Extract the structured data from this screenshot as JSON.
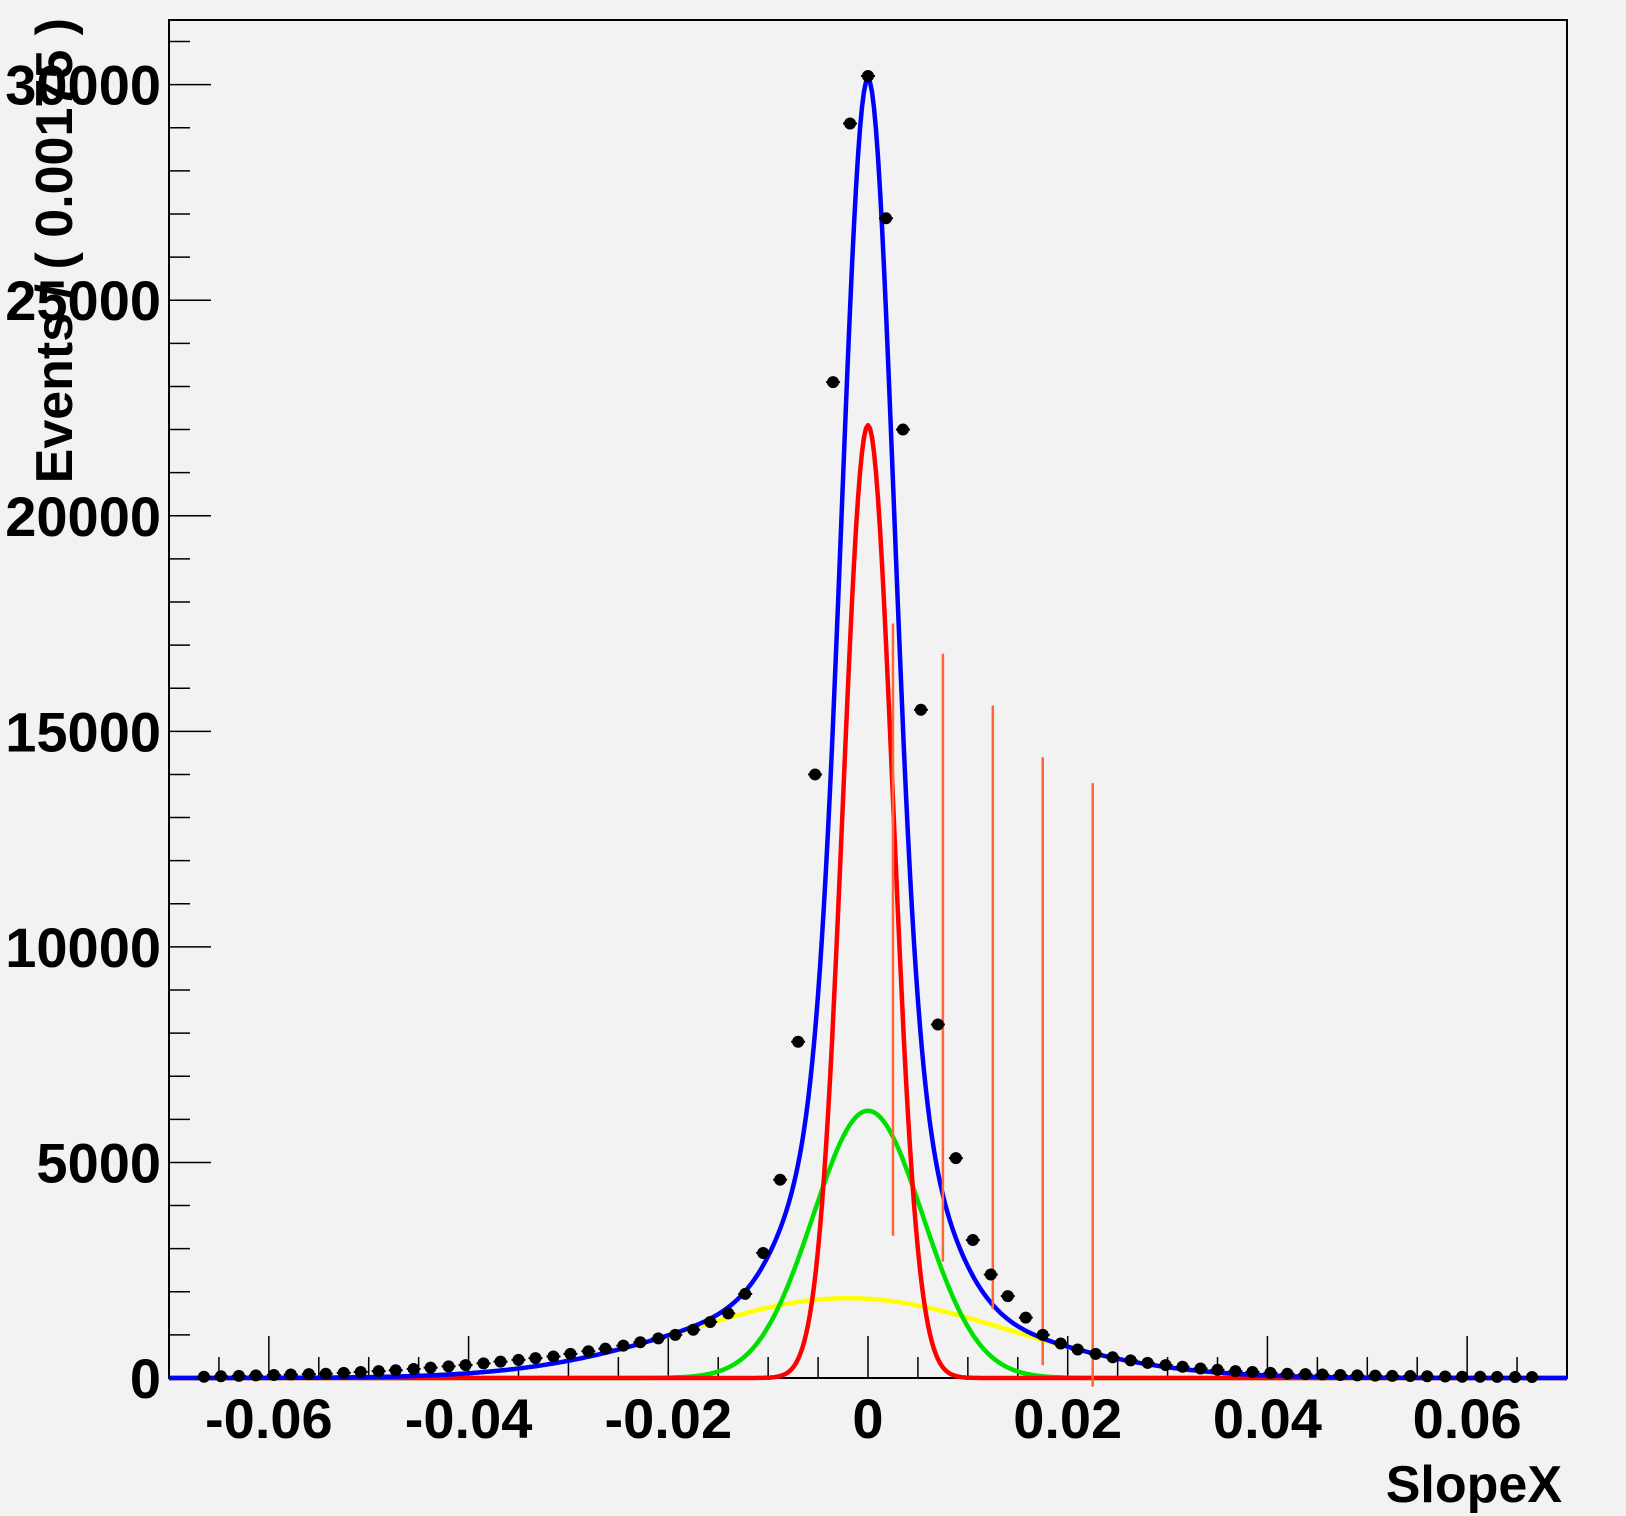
{
  "chart_data": {
    "type": "line",
    "title": "",
    "xlabel": "SlopeX",
    "ylabel": "Events / ( 0.00175 )",
    "xlim": [
      -0.07,
      0.07
    ],
    "ylim": [
      0,
      31500
    ],
    "x_ticks": [
      -0.06,
      -0.04,
      -0.02,
      0,
      0.02,
      0.04,
      0.06
    ],
    "x_tick_labels": [
      "-0.06",
      "-0.04",
      "-0.02",
      "0",
      "0.02",
      "0.04",
      "0.06"
    ],
    "y_ticks": [
      0,
      5000,
      10000,
      15000,
      20000,
      25000,
      30000
    ],
    "y_tick_labels": [
      "0",
      "5000",
      "10000",
      "15000",
      "20000",
      "25000",
      "30000"
    ],
    "grid": false,
    "legend": "none",
    "data_points": {
      "name": "data",
      "color": "#000000",
      "x": [
        -0.0665,
        -0.0648,
        -0.063,
        -0.0613,
        -0.0595,
        -0.0578,
        -0.056,
        -0.0543,
        -0.0525,
        -0.0508,
        -0.049,
        -0.0473,
        -0.0455,
        -0.0438,
        -0.042,
        -0.0403,
        -0.0385,
        -0.0368,
        -0.035,
        -0.0333,
        -0.0315,
        -0.0298,
        -0.028,
        -0.0263,
        -0.0245,
        -0.0228,
        -0.021,
        -0.0193,
        -0.0175,
        -0.0158,
        -0.014,
        -0.0123,
        -0.0105,
        -0.0088,
        -0.007,
        -0.0053,
        -0.0035,
        -0.0018,
        0.0,
        0.0018,
        0.0035,
        0.0053,
        0.007,
        0.0088,
        0.0105,
        0.0123,
        0.014,
        0.0158,
        0.0175,
        0.0193,
        0.021,
        0.0228,
        0.0245,
        0.0263,
        0.028,
        0.0298,
        0.0315,
        0.0333,
        0.035,
        0.0368,
        0.0385,
        0.0403,
        0.042,
        0.0438,
        0.0455,
        0.0473,
        0.049,
        0.0508,
        0.0525,
        0.0543,
        0.056,
        0.0578,
        0.0595,
        0.0613,
        0.063,
        0.0648,
        0.0665
      ],
      "y": [
        30,
        40,
        50,
        60,
        70,
        80,
        90,
        100,
        120,
        140,
        160,
        180,
        210,
        240,
        270,
        300,
        340,
        380,
        420,
        460,
        500,
        560,
        620,
        680,
        750,
        830,
        920,
        1000,
        1120,
        1300,
        1500,
        1950,
        2900,
        4600,
        7800,
        14000,
        23100,
        29100,
        30200,
        26900,
        22000,
        15500,
        8200,
        5100,
        3200,
        2400,
        1900,
        1400,
        1000,
        800,
        660,
        560,
        480,
        410,
        350,
        300,
        260,
        220,
        190,
        160,
        140,
        120,
        100,
        90,
        80,
        70,
        60,
        55,
        50,
        45,
        40,
        35,
        30,
        28,
        26,
        24,
        22
      ]
    },
    "curves": [
      {
        "color": "#0000ff",
        "components": [
          {
            "type": "gauss",
            "amp": 22100,
            "mean": 0.0,
            "sigma": 0.0025
          },
          {
            "type": "gauss",
            "amp": 6200,
            "mean": 0.0,
            "sigma": 0.0055
          },
          {
            "type": "gauss",
            "amp": 1850,
            "mean": -0.002,
            "sigma": 0.016
          }
        ]
      },
      {
        "color": "#ff0000",
        "components": [
          {
            "type": "gauss",
            "amp": 22100,
            "mean": 0.0,
            "sigma": 0.0025
          }
        ]
      },
      {
        "color": "#00e000",
        "components": [
          {
            "type": "gauss",
            "amp": 6200,
            "mean": 0.0,
            "sigma": 0.0055
          }
        ]
      },
      {
        "color": "#ffff00",
        "components": [
          {
            "type": "gauss",
            "amp": 1850,
            "mean": -0.002,
            "sigma": 0.016
          }
        ]
      }
    ],
    "markers": {
      "color": "#ff6633",
      "lines": [
        {
          "x": 0.0025,
          "y_top": 17500,
          "y_bottom": 3300
        },
        {
          "x": 0.0075,
          "y_top": 16800,
          "y_bottom": 2700
        },
        {
          "x": 0.0125,
          "y_top": 15600,
          "y_bottom": 1600
        },
        {
          "x": 0.0175,
          "y_top": 14400,
          "y_bottom": 300
        },
        {
          "x": 0.0225,
          "y_top": 13800,
          "y_bottom": -200
        }
      ]
    }
  }
}
